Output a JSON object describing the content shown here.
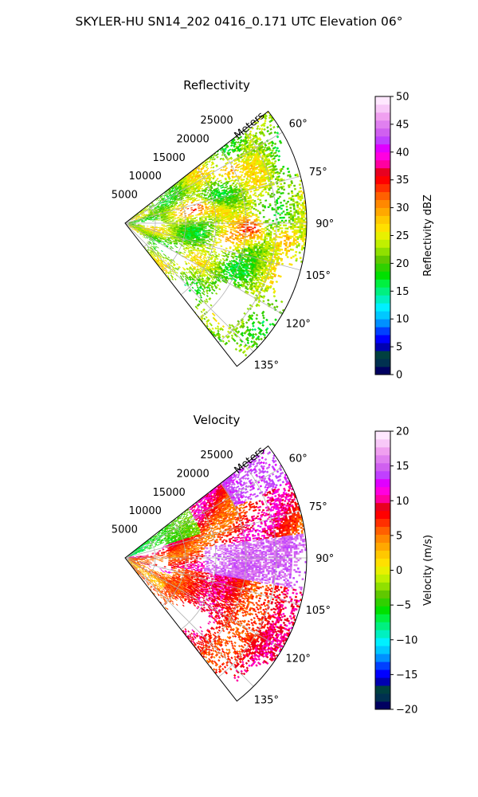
{
  "figure": {
    "suptitle": "SKYLER-HU  SN14_202  0416_0.171 UTC Elevation 06°"
  },
  "chart_data": [
    {
      "type": "heatmap",
      "projection": "polar-sector",
      "title": "Reflectivity",
      "range_label": "Meters",
      "range_ticks": [
        "5000",
        "10000",
        "15000",
        "20000",
        "25000"
      ],
      "range_tick_values": [
        5000,
        10000,
        15000,
        20000,
        25000
      ],
      "range_max": 30000,
      "azimuth_ticks": [
        "60°",
        "75°",
        "90°",
        "105°",
        "120°",
        "135°"
      ],
      "azimuth_tick_values": [
        60,
        75,
        90,
        105,
        120,
        135
      ],
      "azimuth_range": [
        52,
        142
      ],
      "grid": true,
      "colorbar": {
        "label": "Reflectivity dBZ",
        "min": 0,
        "max": 50,
        "ticks": [
          "0",
          "5",
          "10",
          "15",
          "20",
          "25",
          "30",
          "35",
          "40",
          "45",
          "50"
        ],
        "tick_values": [
          0,
          5,
          10,
          15,
          20,
          25,
          30,
          35,
          40,
          45,
          50
        ],
        "colors": [
          "#000060",
          "#003050",
          "#004040",
          "#0000b0",
          "#0000ff",
          "#0040ff",
          "#0090ff",
          "#00c8ff",
          "#00f0ff",
          "#00f0c0",
          "#00f080",
          "#00f040",
          "#00e000",
          "#30d000",
          "#60c800",
          "#90e000",
          "#c0f000",
          "#e8f000",
          "#ffe000",
          "#ffc800",
          "#ffa800",
          "#ff8800",
          "#ff6000",
          "#ff3000",
          "#ff0000",
          "#e80020",
          "#ff00a0",
          "#ff00e0",
          "#e000ff",
          "#c040ff",
          "#d060f0",
          "#e080f0",
          "#f0a0f0",
          "#f8c8f8",
          "#ffe8ff"
        ]
      },
      "echo_values_dbz": {
        "near_field": [
          20,
          25
        ],
        "main_cells": [
          25,
          38
        ],
        "peak_cores": [
          35,
          42
        ],
        "weak_echo": [
          10,
          20
        ]
      }
    },
    {
      "type": "heatmap",
      "projection": "polar-sector",
      "title": "Velocity",
      "range_label": "Meters",
      "range_ticks": [
        "5000",
        "10000",
        "15000",
        "20000",
        "25000"
      ],
      "range_tick_values": [
        5000,
        10000,
        15000,
        20000,
        25000
      ],
      "range_max": 30000,
      "azimuth_ticks": [
        "60°",
        "75°",
        "90°",
        "105°",
        "120°",
        "135°"
      ],
      "azimuth_tick_values": [
        60,
        75,
        90,
        105,
        120,
        135
      ],
      "azimuth_range": [
        52,
        142
      ],
      "grid": true,
      "colorbar": {
        "label": "Velocity (m/s)",
        "min": -20,
        "max": 20,
        "ticks": [
          "−20",
          "−15",
          "−10",
          "−5",
          "0",
          "5",
          "10",
          "15",
          "20"
        ],
        "tick_values": [
          -20,
          -15,
          -10,
          -5,
          0,
          5,
          10,
          15,
          20
        ],
        "colors": [
          "#000060",
          "#003050",
          "#004040",
          "#0000b0",
          "#0000ff",
          "#0040ff",
          "#0090ff",
          "#00c8ff",
          "#00f0ff",
          "#00f0c0",
          "#00f080",
          "#00f040",
          "#00e000",
          "#30d000",
          "#60c800",
          "#90e000",
          "#c0f000",
          "#e8f000",
          "#ffe000",
          "#ffc800",
          "#ffa800",
          "#ff8800",
          "#ff6000",
          "#ff3000",
          "#ff0000",
          "#e80020",
          "#ff00a0",
          "#ff00e0",
          "#e000ff",
          "#c040ff",
          "#d060f0",
          "#e080f0",
          "#f0a0f0",
          "#f8c8f8",
          "#ffe8ff"
        ]
      },
      "echo_values_ms": {
        "north_near": [
          -8,
          -3
        ],
        "center_band": [
          8,
          12
        ],
        "east_core": [
          12,
          17
        ],
        "south_patches": [
          2,
          8
        ]
      }
    }
  ]
}
